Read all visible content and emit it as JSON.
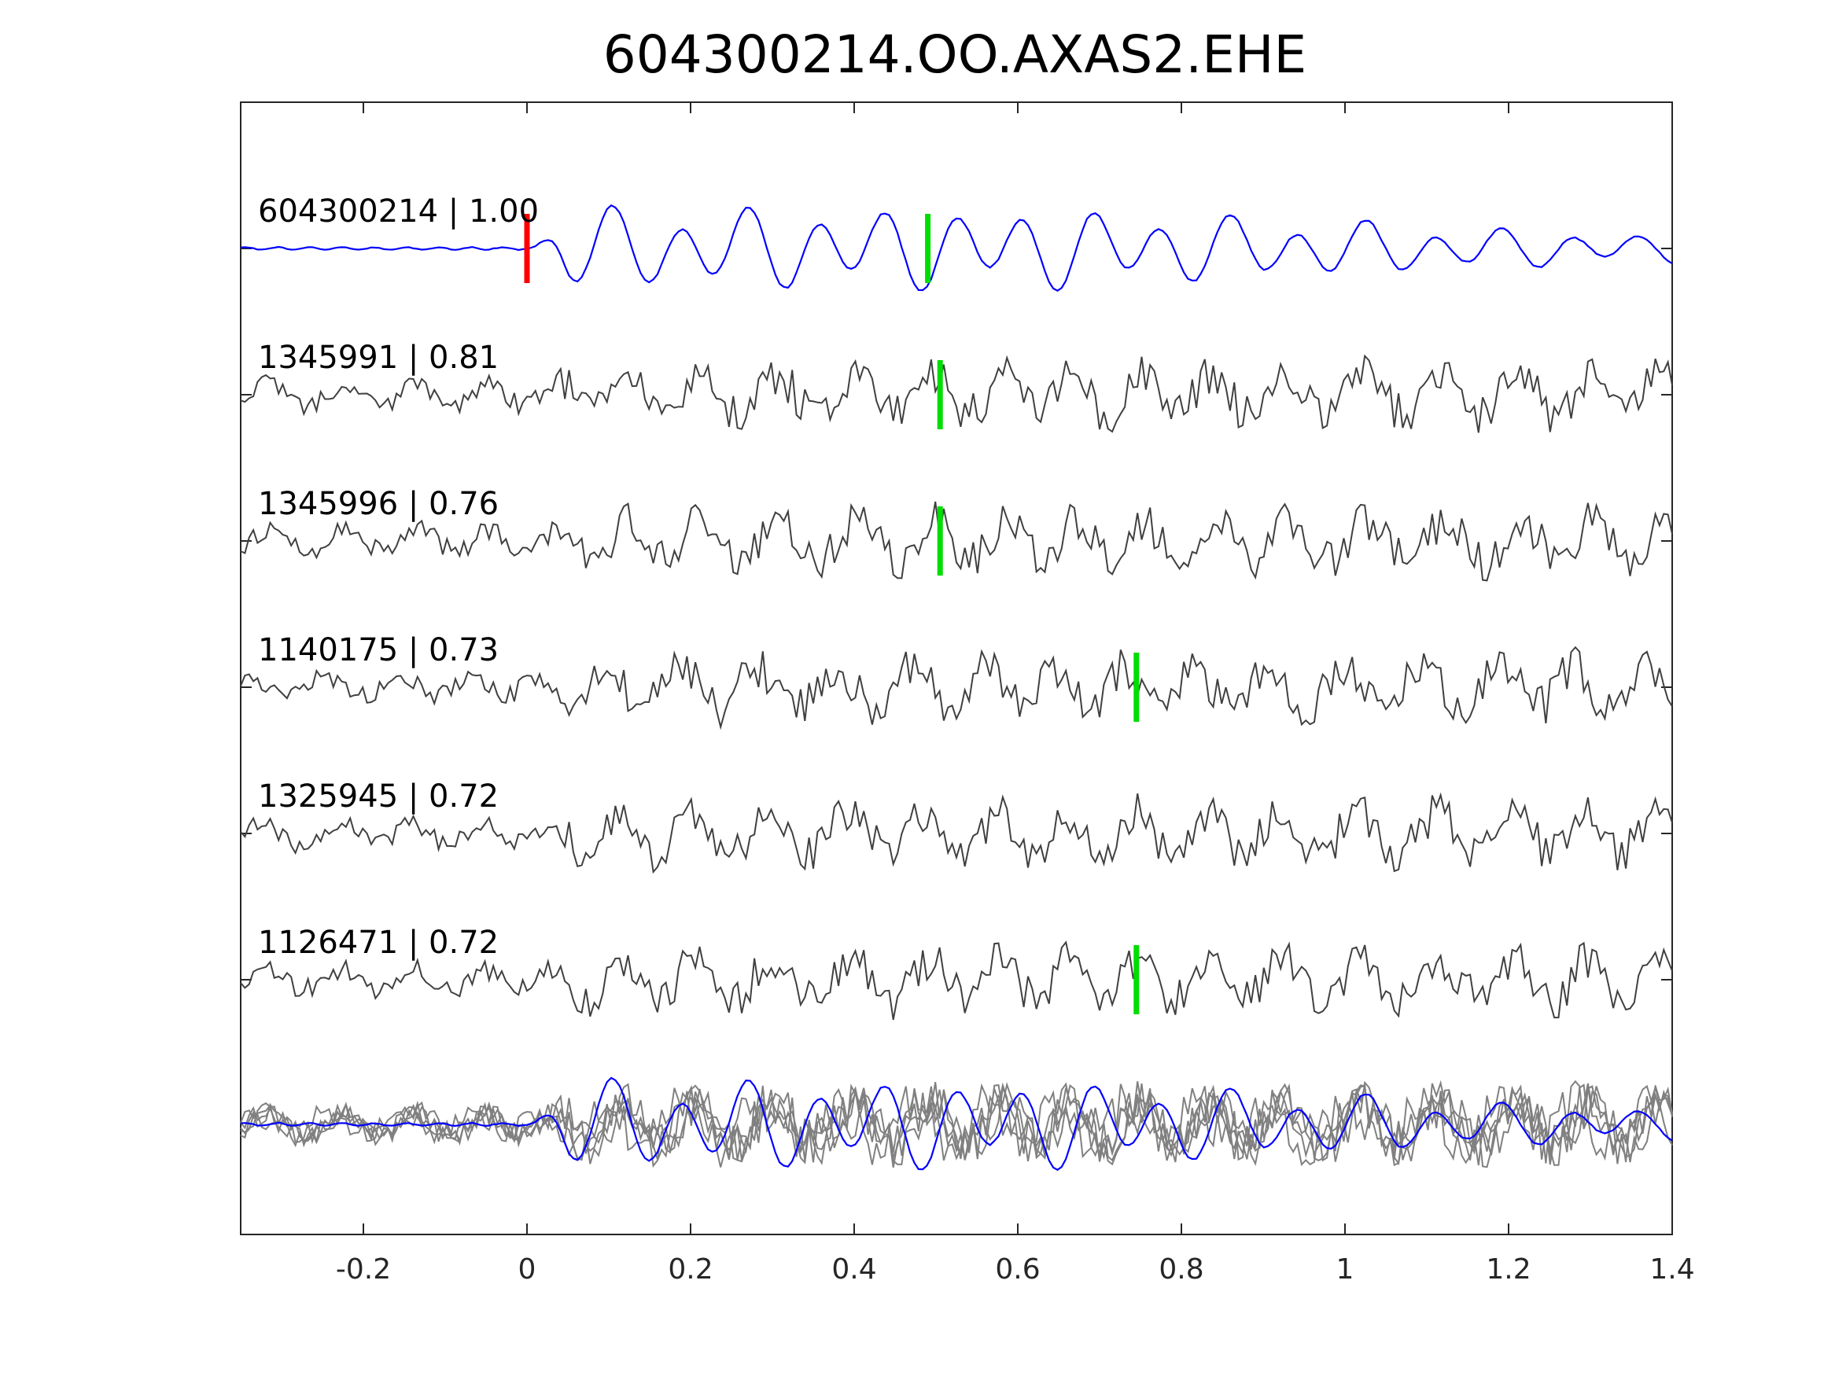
{
  "chart_data": {
    "type": "line",
    "title": "604300214.OO.AXAS2.EHE",
    "xlabel": "",
    "ylabel": "",
    "xlim": [
      -0.35,
      1.4
    ],
    "x_ticks": [
      -0.2,
      0,
      0.2,
      0.4,
      0.6,
      0.8,
      1,
      1.2,
      1.4
    ],
    "x_tick_labels": [
      "-0.2",
      "0",
      "0.2",
      "0.4",
      "0.6",
      "0.8",
      "1",
      "1.2",
      "1.4"
    ],
    "grid": false,
    "legend": "none",
    "colors": {
      "template": "#0000ff",
      "match": "#404040",
      "overlay": "#808080",
      "template_pick": "#ff0000",
      "match_pick": "#00dd00",
      "axes": "#262626"
    },
    "template_pick_time": 0.0,
    "series": [
      {
        "name": "604300214 | 1.00",
        "label": "604300214 | 1.00",
        "role": "template",
        "pick_time": 0.49,
        "seed": 11
      },
      {
        "name": "1345991 | 0.81",
        "label": "1345991 | 0.81",
        "role": "match",
        "pick_time": 0.505,
        "seed": 23
      },
      {
        "name": "1345996 | 0.76",
        "label": "1345996 | 0.76",
        "role": "match",
        "pick_time": 0.505,
        "seed": 37
      },
      {
        "name": "1140175 | 0.73",
        "label": "1140175 | 0.73",
        "role": "match",
        "pick_time": 0.745,
        "seed": 41
      },
      {
        "name": "1325945 | 0.72",
        "label": "1325945 | 0.72",
        "role": "match",
        "pick_time": null,
        "seed": 53
      },
      {
        "name": "1126471 | 0.72",
        "label": "1126471 | 0.72",
        "role": "match",
        "pick_time": 0.745,
        "seed": 67
      }
    ]
  }
}
